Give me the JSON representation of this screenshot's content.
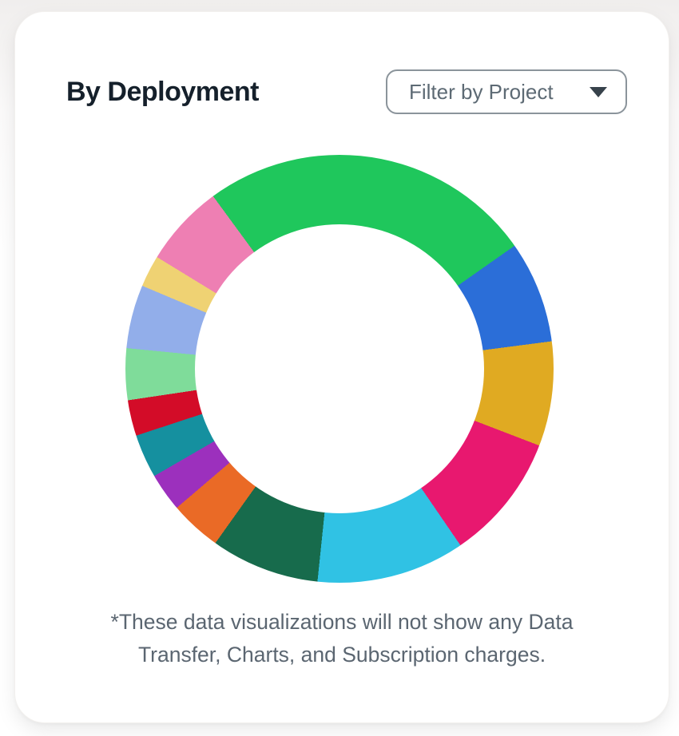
{
  "card": {
    "title": "By Deployment",
    "filter_dropdown": {
      "label": "Filter by Project",
      "caret_icon": "caret-down-icon"
    },
    "footnote": {
      "line1": "*These data visualizations will not show any Data",
      "line2": "Transfer, Charts, and Subscription charges."
    }
  },
  "colors": {
    "page_bg_top": "#f0eeed",
    "card_bg": "#ffffff",
    "title_text": "#15202b",
    "dropdown_border": "#8b949b",
    "dropdown_text": "#5d6a74",
    "caret": "#37424b",
    "footnote_text": "#5b6671"
  },
  "chart_data": {
    "type": "pie",
    "donut": true,
    "title": "By Deployment",
    "legend": "none",
    "data_labels": "none",
    "start_angle_deg": -36.2,
    "inner_radius_ratio": 0.675,
    "segments": [
      {
        "name": "green",
        "color": "#1fc75c",
        "percent": 25.3
      },
      {
        "name": "blue",
        "color": "#2b6ed8",
        "percent": 7.7
      },
      {
        "name": "gold",
        "color": "#e0aa22",
        "percent": 7.9
      },
      {
        "name": "magenta",
        "color": "#e8186f",
        "percent": 9.6
      },
      {
        "name": "cyan",
        "color": "#30c2e4",
        "percent": 11.2
      },
      {
        "name": "dark-green",
        "color": "#176b4c",
        "percent": 8.2
      },
      {
        "name": "orange",
        "color": "#ea6a26",
        "percent": 3.9
      },
      {
        "name": "purple",
        "color": "#9c30bd",
        "percent": 2.9
      },
      {
        "name": "teal",
        "color": "#15909f",
        "percent": 3.3
      },
      {
        "name": "red",
        "color": "#d30c28",
        "percent": 2.7
      },
      {
        "name": "mint",
        "color": "#7fdc9a",
        "percent": 3.9
      },
      {
        "name": "periwinkle",
        "color": "#92aeea",
        "percent": 4.8
      },
      {
        "name": "pale-yellow",
        "color": "#efd273",
        "percent": 2.4
      },
      {
        "name": "pink",
        "color": "#ee7fb3",
        "percent": 6.2
      }
    ]
  }
}
